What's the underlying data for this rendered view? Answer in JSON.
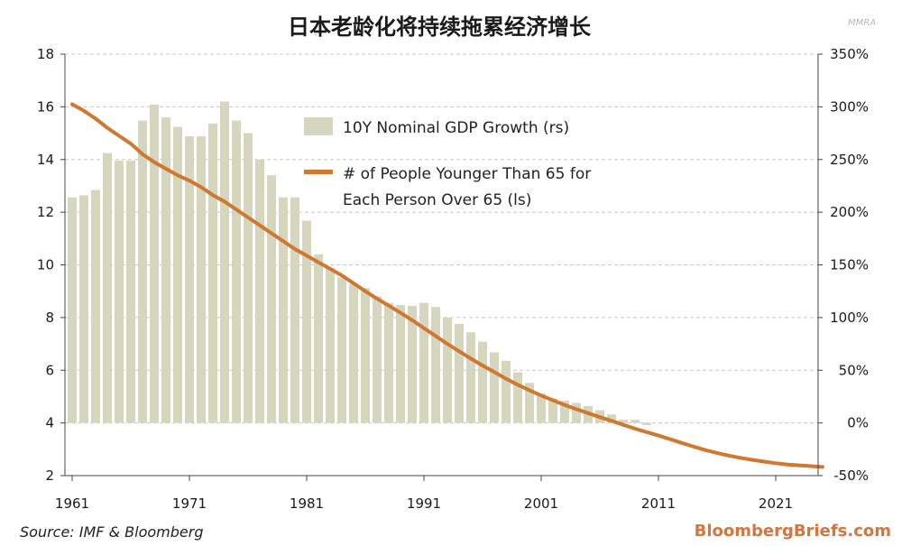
{
  "watermark": "MMRA",
  "chart_data": {
    "type": "bar+line",
    "title": "日本老龄化将持续拖累经济增长",
    "x": [
      1961,
      1962,
      1963,
      1964,
      1965,
      1966,
      1967,
      1968,
      1969,
      1970,
      1971,
      1972,
      1973,
      1974,
      1975,
      1976,
      1977,
      1978,
      1979,
      1980,
      1981,
      1982,
      1983,
      1984,
      1985,
      1986,
      1987,
      1988,
      1989,
      1990,
      1991,
      1992,
      1993,
      1994,
      1995,
      1996,
      1997,
      1998,
      1999,
      2000,
      2001,
      2002,
      2003,
      2004,
      2005,
      2006,
      2007,
      2008,
      2009,
      2010,
      2011,
      2012,
      2013,
      2014,
      2015,
      2016,
      2017,
      2018,
      2019,
      2020,
      2021,
      2022,
      2023,
      2024,
      2025
    ],
    "xticks": [
      "1961",
      "1971",
      "1981",
      "1991",
      "2001",
      "2011",
      "2021"
    ],
    "left_axis": {
      "ylim": [
        2,
        18
      ],
      "ticks": [
        "2",
        "4",
        "6",
        "8",
        "10",
        "12",
        "14",
        "16",
        "18"
      ]
    },
    "right_axis": {
      "ylim": [
        -50,
        350
      ],
      "ticks": [
        "-50%",
        "0%",
        "50%",
        "100%",
        "150%",
        "200%",
        "250%",
        "300%",
        "350%"
      ]
    },
    "grid": "dashed horizontal",
    "legend_placement": "top-center",
    "series": [
      {
        "name": "10Y Nominal GDP Growth (rs)",
        "kind": "bar",
        "axis": "right",
        "color": "#d6d5bd",
        "values": [
          214,
          216,
          221,
          256,
          249,
          249,
          287,
          302,
          290,
          281,
          272,
          272,
          284,
          305,
          287,
          275,
          250,
          235,
          214,
          214,
          192,
          160,
          147,
          138,
          132,
          128,
          120,
          114,
          112,
          111,
          114,
          110,
          100,
          94,
          86,
          77,
          67,
          59,
          48,
          38,
          28,
          23,
          21,
          19,
          16,
          12,
          8,
          3,
          3,
          -2,
          null,
          null,
          null,
          null,
          null,
          null,
          null,
          null,
          null,
          null,
          null,
          null,
          null,
          null,
          null
        ]
      },
      {
        "name": "# of People Younger Than 65 for Each Person Over 65 (ls)",
        "kind": "line",
        "axis": "left",
        "color": "#d0782f",
        "values": [
          16.1,
          15.85,
          15.55,
          15.2,
          14.9,
          14.6,
          14.2,
          13.9,
          13.65,
          13.4,
          13.2,
          12.95,
          12.65,
          12.4,
          12.1,
          11.8,
          11.5,
          11.2,
          10.9,
          10.6,
          10.35,
          10.1,
          9.85,
          9.6,
          9.3,
          9.0,
          8.72,
          8.45,
          8.18,
          7.9,
          7.6,
          7.3,
          7.0,
          6.72,
          6.44,
          6.18,
          5.93,
          5.68,
          5.45,
          5.24,
          5.04,
          4.86,
          4.68,
          4.52,
          4.37,
          4.22,
          4.08,
          3.93,
          3.78,
          3.65,
          3.52,
          3.38,
          3.24,
          3.1,
          2.97,
          2.86,
          2.76,
          2.67,
          2.6,
          2.53,
          2.47,
          2.42,
          2.39,
          2.36,
          2.33
        ]
      }
    ],
    "legend": {
      "bar_label": "10Y Nominal GDP Growth (rs)",
      "line_label_1": "# of People Younger Than 65 for",
      "line_label_2": "Each Person Over 65 (ls)"
    },
    "source": "Source: IMF & Bloomberg",
    "brand": "BloombergBriefs.com"
  }
}
